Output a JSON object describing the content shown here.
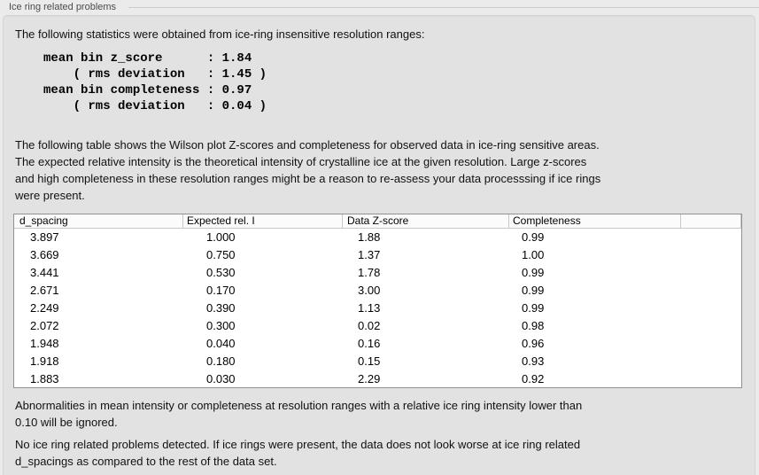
{
  "panel": {
    "title": "Ice ring related problems"
  },
  "intro": "The following statistics were obtained from ice-ring insensitive resolution ranges:",
  "stats_block": "mean bin z_score      : 1.84\n    ( rms deviation   : 1.45 )\nmean bin completeness : 0.97\n    ( rms deviation   : 0.04 )",
  "table_intro": "The following table shows the Wilson plot Z-scores and completeness for observed data in ice-ring sensitive areas.\nThe expected relative intensity is the theoretical intensity of crystalline ice at the given resolution. Large z-scores\nand high completeness in these resolution ranges might be a reason to re-assess your data processsing if ice rings\nwere present.",
  "table": {
    "columns": [
      "d_spacing",
      "Expected rel. I",
      "Data Z-score",
      "Completeness",
      ""
    ],
    "rows": [
      [
        "3.897",
        "1.000",
        "1.88",
        "0.99"
      ],
      [
        "3.669",
        "0.750",
        "1.37",
        "1.00"
      ],
      [
        "3.441",
        "0.530",
        "1.78",
        "0.99"
      ],
      [
        "2.671",
        "0.170",
        "3.00",
        "0.99"
      ],
      [
        "2.249",
        "0.390",
        "1.13",
        "0.99"
      ],
      [
        "2.072",
        "0.300",
        "0.02",
        "0.98"
      ],
      [
        "1.948",
        "0.040",
        "0.16",
        "0.96"
      ],
      [
        "1.918",
        "0.180",
        "0.15",
        "0.93"
      ],
      [
        "1.883",
        "0.030",
        "2.29",
        "0.92"
      ]
    ]
  },
  "note_ignore": "Abnormalities in mean intensity or completeness at resolution ranges with a relative ice ring intensity lower than\n0.10 will be ignored.",
  "conclusion": "No ice ring related problems detected. If ice rings were present, the data does not look worse at ice ring related\nd_spacings as compared to the rest of the data set."
}
